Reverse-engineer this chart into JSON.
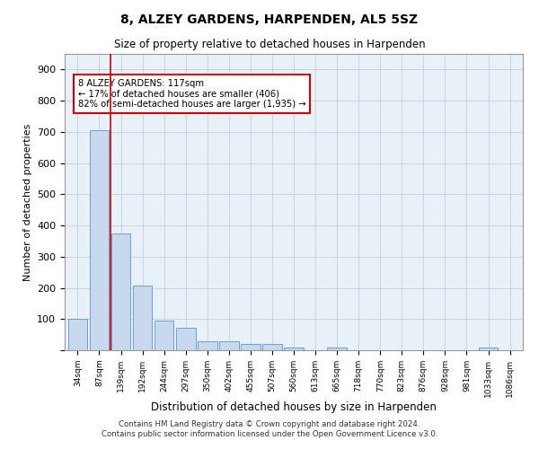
{
  "title": "8, ALZEY GARDENS, HARPENDEN, AL5 5SZ",
  "subtitle": "Size of property relative to detached houses in Harpenden",
  "xlabel": "Distribution of detached houses by size in Harpenden",
  "ylabel": "Number of detached properties",
  "categories": [
    "34sqm",
    "87sqm",
    "139sqm",
    "192sqm",
    "244sqm",
    "297sqm",
    "350sqm",
    "402sqm",
    "455sqm",
    "507sqm",
    "560sqm",
    "613sqm",
    "665sqm",
    "718sqm",
    "770sqm",
    "823sqm",
    "876sqm",
    "928sqm",
    "981sqm",
    "1033sqm",
    "1086sqm"
  ],
  "heights": [
    100,
    706,
    375,
    207,
    96,
    73,
    30,
    30,
    20,
    20,
    10,
    0,
    10,
    0,
    0,
    0,
    0,
    0,
    0,
    10,
    0
  ],
  "bar_color": "#c8d9ee",
  "bar_edge_color": "#6a9fd0",
  "vline_x": 1.5,
  "vline_color": "#cc0000",
  "annotation_text_line1": "8 ALZEY GARDENS: 117sqm",
  "annotation_text_line2": "← 17% of detached houses are smaller (406)",
  "annotation_text_line3": "82% of semi-detached houses are larger (1,935) →",
  "annotation_box_color": "#cc0000",
  "ylim": [
    0,
    950
  ],
  "yticks": [
    0,
    100,
    200,
    300,
    400,
    500,
    600,
    700,
    800,
    900
  ],
  "footer_line1": "Contains HM Land Registry data © Crown copyright and database right 2024.",
  "footer_line2": "Contains public sector information licensed under the Open Government Licence v3.0.",
  "background_color": "#ffffff",
  "plot_bg_color": "#e8f0f8",
  "grid_color": "#c0c8d8"
}
